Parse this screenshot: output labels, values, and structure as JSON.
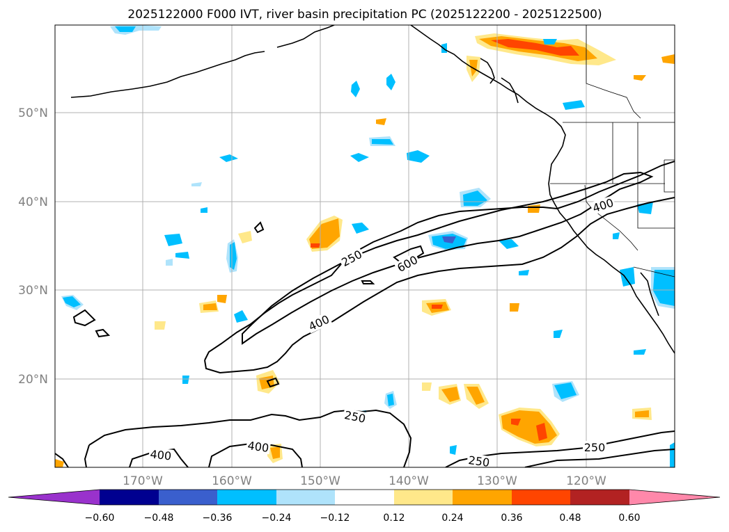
{
  "title": "2025122000 F000 IVT, river basin precipitation PC (2025122200 - 2025122500)",
  "lat_labels": [
    "50°N",
    "40°N",
    "30°N",
    "20°N"
  ],
  "lon_labels": [
    "170°W",
    "160°W",
    "150°W",
    "140°W",
    "130°W",
    "120°W"
  ],
  "colorbar": {
    "ticks": [
      "−0.60",
      "−0.48",
      "−0.36",
      "−0.24",
      "−0.12",
      "0.12",
      "0.24",
      "0.36",
      "0.48",
      "0.60"
    ],
    "colors": {
      "under": "#9932cc",
      "b1": "#000090",
      "b2": "#3a5fcd",
      "b3": "#00bfff",
      "b4": "#afe3fb",
      "b5": "#ffffff",
      "b6": "#ffe88a",
      "b7": "#ffa500",
      "b8": "#ff4500",
      "b9": "#b22222",
      "over": "#ff88aa"
    }
  },
  "contour_labels": {
    "c250a": "250",
    "c600": "600",
    "c400a": "400",
    "c400b": "400",
    "c250b": "250",
    "c400c": "400",
    "c400d": "400",
    "c250c": "250",
    "c250d": "250"
  }
}
